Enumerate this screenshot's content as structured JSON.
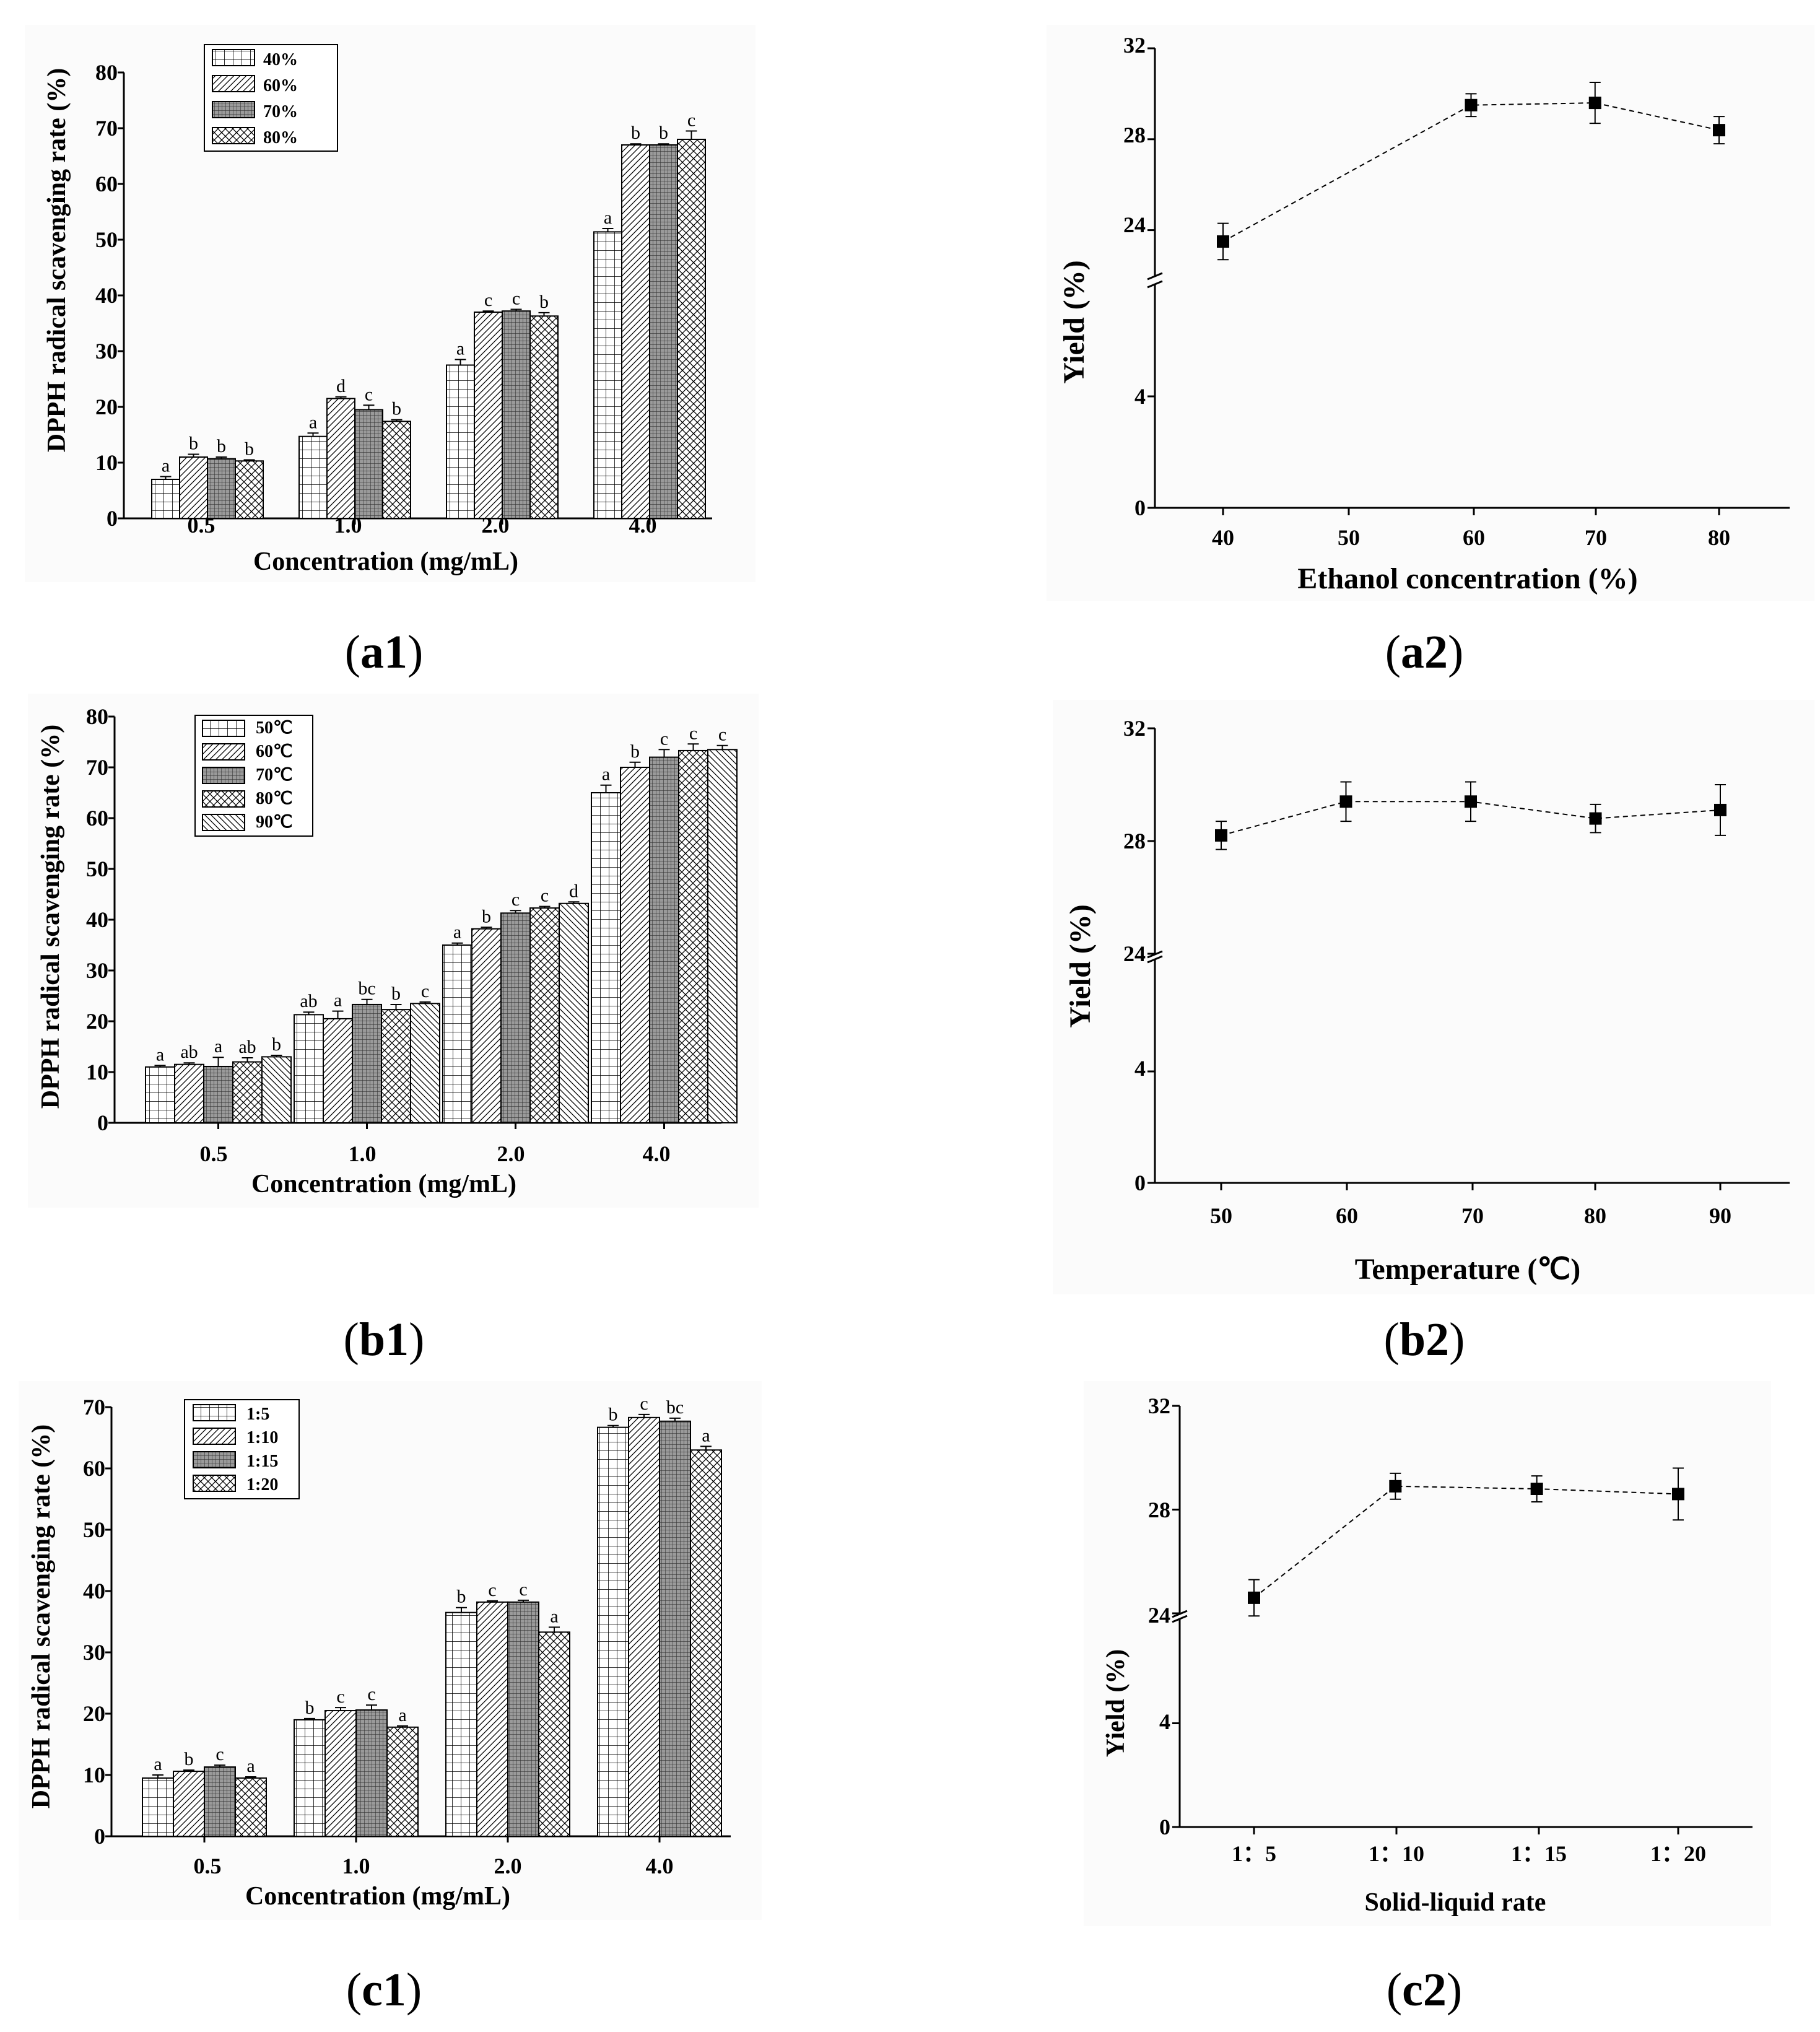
{
  "captions": {
    "a1": {
      "open": "(",
      "label": "a1",
      "close": ")"
    },
    "a2": {
      "open": "(",
      "label": "a2",
      "close": ")"
    },
    "b1": {
      "open": "(",
      "label": "b1",
      "close": ")"
    },
    "b2": {
      "open": "(",
      "label": "b2",
      "close": ")"
    },
    "c1": {
      "open": "(",
      "label": "c1",
      "close": ")"
    },
    "c2": {
      "open": "(",
      "label": "c2",
      "close": ")"
    }
  },
  "chart_data": [
    {
      "id": "a1",
      "type": "bar",
      "xlabel": "Concentration (mg/mL)",
      "ylabel": "DPPH radical scavenging rate (%)",
      "ylim": [
        0,
        80
      ],
      "yticks": [
        "0",
        "10",
        "20",
        "30",
        "40",
        "50",
        "60",
        "70",
        "80"
      ],
      "categories": [
        "0.5",
        "1.0",
        "2.0",
        "4.0"
      ],
      "legend_position": "top-left",
      "series": [
        {
          "name": "40%",
          "pattern": "grid",
          "values": [
            7.0,
            14.7,
            27.5,
            51.4
          ],
          "errors": [
            0.5,
            0.6,
            1.0,
            0.6
          ],
          "labels": [
            "a",
            "a",
            "a",
            "a"
          ]
        },
        {
          "name": "60%",
          "pattern": "diag",
          "values": [
            11.0,
            21.5,
            37.0,
            67.0
          ],
          "errors": [
            0.5,
            0.3,
            0.2,
            0.2
          ],
          "labels": [
            "b",
            "d",
            "c",
            "b"
          ]
        },
        {
          "name": "70%",
          "pattern": "dense",
          "values": [
            10.7,
            19.5,
            37.2,
            67.0
          ],
          "errors": [
            0.3,
            0.8,
            0.3,
            0.2
          ],
          "labels": [
            "b",
            "c",
            "c",
            "b"
          ]
        },
        {
          "name": "80%",
          "pattern": "cross",
          "values": [
            10.3,
            17.4,
            36.3,
            68.0
          ],
          "errors": [
            0.2,
            0.3,
            0.6,
            1.5
          ],
          "labels": [
            "b",
            "b",
            "b",
            "c"
          ]
        }
      ]
    },
    {
      "id": "a2",
      "type": "line",
      "xlabel": "Ethanol concentration (%)",
      "ylabel": "Yield (%)",
      "x": [
        40,
        60,
        70,
        80
      ],
      "y": [
        23.5,
        29.5,
        29.6,
        28.4
      ],
      "errors": [
        0.8,
        0.5,
        0.9,
        0.6
      ],
      "xticks": [
        "40",
        "50",
        "60",
        "70",
        "80"
      ],
      "yticks_upper": [
        "24",
        "28",
        "32"
      ],
      "yticks_lower": [
        "0",
        "4"
      ],
      "ylim_upper": [
        22,
        32
      ],
      "ylim_lower": [
        0,
        8
      ]
    },
    {
      "id": "b1",
      "type": "bar",
      "xlabel": "Concentration (mg/mL)",
      "ylabel": "DPPH radical scavenging rate (%)",
      "ylim": [
        0,
        80
      ],
      "yticks": [
        "0",
        "10",
        "20",
        "30",
        "40",
        "50",
        "60",
        "70",
        "80"
      ],
      "categories": [
        "0.5",
        "1.0",
        "2.0",
        "4.0"
      ],
      "legend_position": "top-left",
      "series": [
        {
          "name": "50℃",
          "pattern": "grid",
          "values": [
            11.0,
            21.3,
            35.0,
            65.0
          ],
          "errors": [
            0.3,
            0.5,
            0.4,
            1.5
          ],
          "labels": [
            "a",
            "ab",
            "a",
            "a"
          ]
        },
        {
          "name": "60℃",
          "pattern": "diag",
          "values": [
            11.5,
            20.5,
            38.2,
            70.0
          ],
          "errors": [
            0.3,
            1.5,
            0.3,
            1.0
          ],
          "labels": [
            "ab",
            "a",
            "b",
            "b"
          ]
        },
        {
          "name": "70℃",
          "pattern": "dense",
          "values": [
            11.1,
            23.3,
            41.3,
            72.0
          ],
          "errors": [
            1.8,
            1.0,
            0.5,
            1.5
          ],
          "labels": [
            "a",
            "bc",
            "c",
            "c"
          ]
        },
        {
          "name": "80℃",
          "pattern": "cross",
          "values": [
            12.0,
            22.3,
            42.3,
            73.3
          ],
          "errors": [
            0.8,
            1.0,
            0.3,
            1.3
          ],
          "labels": [
            "ab",
            "b",
            "c",
            "c"
          ]
        },
        {
          "name": "90℃",
          "pattern": "diagb",
          "values": [
            13.0,
            23.5,
            43.2,
            73.5
          ],
          "errors": [
            0.3,
            0.3,
            0.3,
            0.8
          ],
          "labels": [
            "b",
            "c",
            "d",
            "c"
          ]
        }
      ]
    },
    {
      "id": "b2",
      "type": "line",
      "xlabel": "Temperature (℃)",
      "ylabel": "Yield (%)",
      "x": [
        50,
        60,
        70,
        80,
        90
      ],
      "y": [
        28.2,
        29.4,
        29.4,
        28.8,
        29.1
      ],
      "errors": [
        0.5,
        0.7,
        0.7,
        0.5,
        0.9
      ],
      "xticks": [
        "50",
        "60",
        "70",
        "80",
        "90"
      ],
      "yticks_upper": [
        "24",
        "28",
        "32"
      ],
      "yticks_lower": [
        "0",
        "4"
      ],
      "ylim_upper": [
        24,
        32
      ],
      "ylim_lower": [
        0,
        8
      ]
    },
    {
      "id": "c1",
      "type": "bar",
      "xlabel": "Concentration (mg/mL)",
      "ylabel": "DPPH radical scavenging rate (%)",
      "ylim": [
        0,
        70
      ],
      "yticks": [
        "0",
        "10",
        "20",
        "30",
        "40",
        "50",
        "60",
        "70"
      ],
      "categories": [
        "0.5",
        "1.0",
        "2.0",
        "4.0"
      ],
      "legend_position": "top-left",
      "series": [
        {
          "name": "1:5",
          "pattern": "grid",
          "values": [
            9.5,
            19.0,
            36.5,
            66.7
          ],
          "errors": [
            0.5,
            0.2,
            0.8,
            0.3
          ],
          "labels": [
            "a",
            "b",
            "b",
            "b"
          ]
        },
        {
          "name": "1:10",
          "pattern": "diag",
          "values": [
            10.6,
            20.5,
            38.2,
            68.3
          ],
          "errors": [
            0.2,
            0.5,
            0.2,
            0.5
          ],
          "labels": [
            "b",
            "c",
            "c",
            "c"
          ]
        },
        {
          "name": "1:15",
          "pattern": "dense",
          "values": [
            11.3,
            20.6,
            38.2,
            67.7
          ],
          "errors": [
            0.3,
            0.8,
            0.3,
            0.5
          ],
          "labels": [
            "c",
            "c",
            "c",
            "bc"
          ]
        },
        {
          "name": "1:20",
          "pattern": "cross",
          "values": [
            9.5,
            17.8,
            33.3,
            63.0
          ],
          "errors": [
            0.2,
            0.2,
            0.8,
            0.6
          ],
          "labels": [
            "a",
            "a",
            "a",
            "a"
          ]
        }
      ]
    },
    {
      "id": "c2",
      "type": "line",
      "xlabel": "Solid-liquid rate",
      "ylabel": "Yield (%)",
      "x": [
        5,
        10,
        15,
        20
      ],
      "y": [
        24.6,
        28.9,
        28.8,
        28.6
      ],
      "errors": [
        0.7,
        0.5,
        0.5,
        1.0
      ],
      "xticks": [
        "1：5",
        "1：10",
        "1：15",
        "1：20"
      ],
      "yticks_upper": [
        "24",
        "28",
        "32"
      ],
      "yticks_lower": [
        "0",
        "4"
      ],
      "ylim_upper": [
        24,
        32
      ],
      "ylim_lower": [
        0,
        8
      ]
    }
  ]
}
